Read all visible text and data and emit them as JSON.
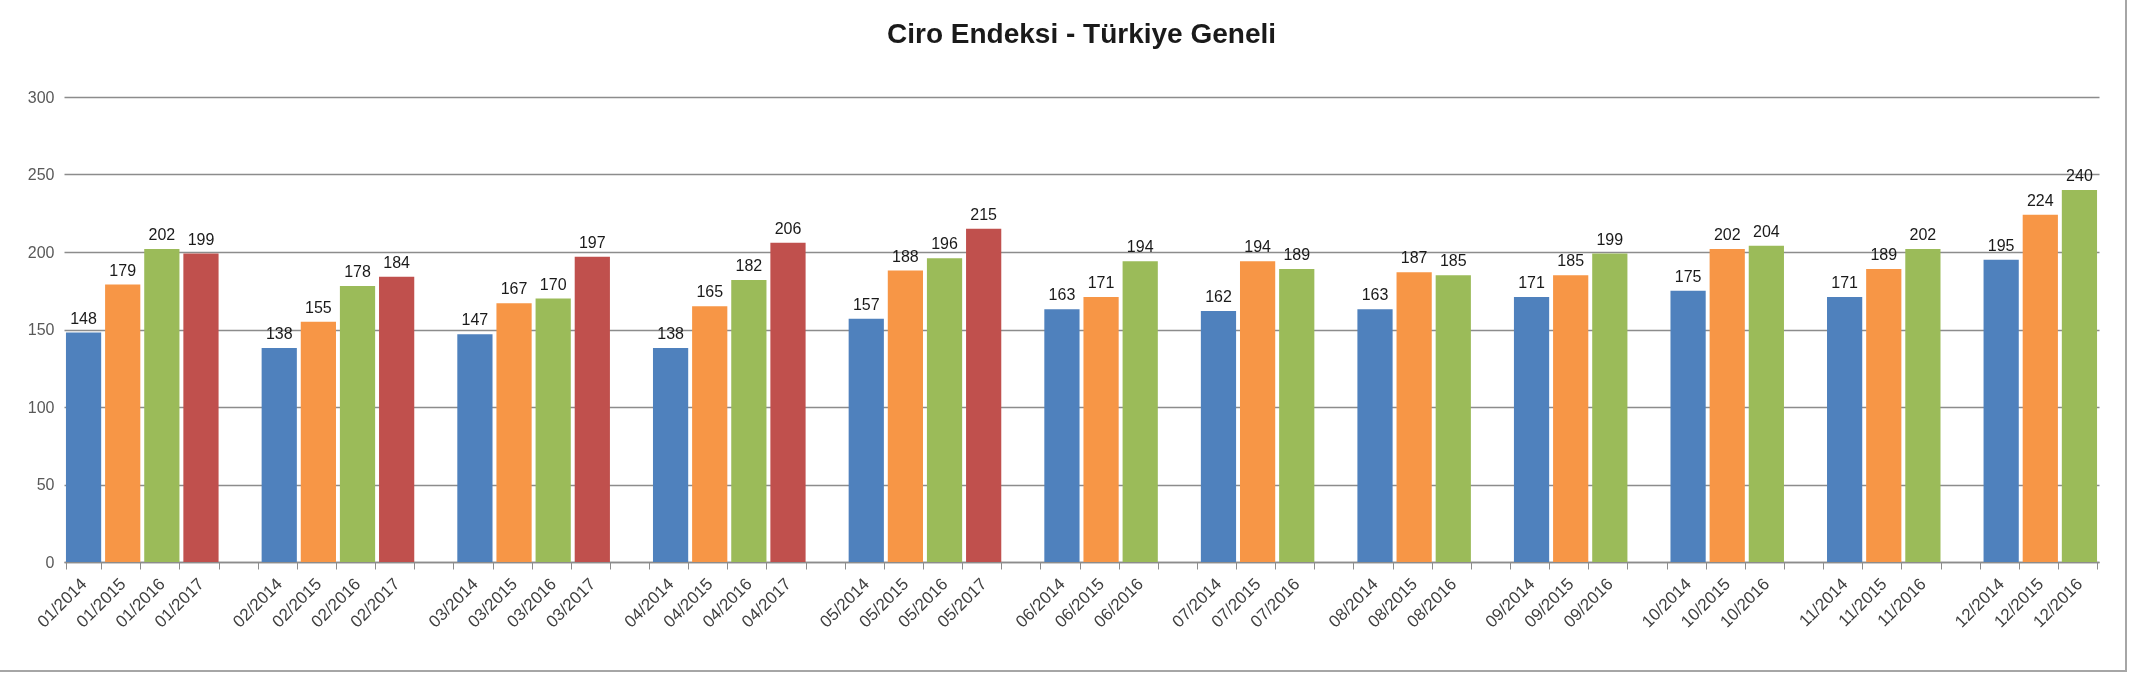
{
  "chart_data": {
    "type": "bar",
    "title": "Ciro Endeksi - Türkiye Geneli",
    "categories": [
      "01/2014",
      "01/2015",
      "01/2016",
      "01/2017",
      null,
      "02/2014",
      "02/2015",
      "02/2016",
      "02/2017",
      null,
      "03/2014",
      "03/2015",
      "03/2016",
      "03/2017",
      null,
      "04/2014",
      "04/2015",
      "04/2016",
      "04/2017",
      null,
      "05/2014",
      "05/2015",
      "05/2016",
      "05/2017",
      null,
      "06/2014",
      "06/2015",
      "06/2016",
      null,
      "07/2014",
      "07/2015",
      "07/2016",
      null,
      "08/2014",
      "08/2015",
      "08/2016",
      null,
      "09/2014",
      "09/2015",
      "09/2016",
      null,
      "10/2014",
      "10/2015",
      "10/2016",
      null,
      "11/2014",
      "11/2015",
      "11/2016",
      null,
      "12/2014",
      "12/2015",
      "12/2016"
    ],
    "values": [
      148,
      179,
      202,
      199,
      null,
      138,
      155,
      178,
      184,
      null,
      147,
      167,
      170,
      197,
      null,
      138,
      165,
      182,
      206,
      null,
      157,
      188,
      196,
      215,
      null,
      163,
      171,
      194,
      null,
      162,
      194,
      189,
      null,
      163,
      187,
      185,
      null,
      171,
      185,
      199,
      null,
      175,
      202,
      204,
      null,
      171,
      189,
      202,
      null,
      195,
      224,
      240
    ],
    "colors": [
      "#4f81bd",
      "#f79646",
      "#9bbb59",
      "#c0504d",
      null,
      "#4f81bd",
      "#f79646",
      "#9bbb59",
      "#c0504d",
      null,
      "#4f81bd",
      "#f79646",
      "#9bbb59",
      "#c0504d",
      null,
      "#4f81bd",
      "#f79646",
      "#9bbb59",
      "#c0504d",
      null,
      "#4f81bd",
      "#f79646",
      "#9bbb59",
      "#c0504d",
      null,
      "#4f81bd",
      "#f79646",
      "#9bbb59",
      null,
      "#4f81bd",
      "#f79646",
      "#9bbb59",
      null,
      "#4f81bd",
      "#f79646",
      "#9bbb59",
      null,
      "#4f81bd",
      "#f79646",
      "#9bbb59",
      null,
      "#4f81bd",
      "#f79646",
      "#9bbb59",
      null,
      "#4f81bd",
      "#f79646",
      "#9bbb59",
      null,
      "#4f81bd",
      "#f79646",
      "#9bbb59"
    ],
    "ylim": [
      0,
      300
    ],
    "yticks": [
      0,
      50,
      100,
      150,
      200,
      250,
      300
    ],
    "grid": "y",
    "data_labels": true
  }
}
